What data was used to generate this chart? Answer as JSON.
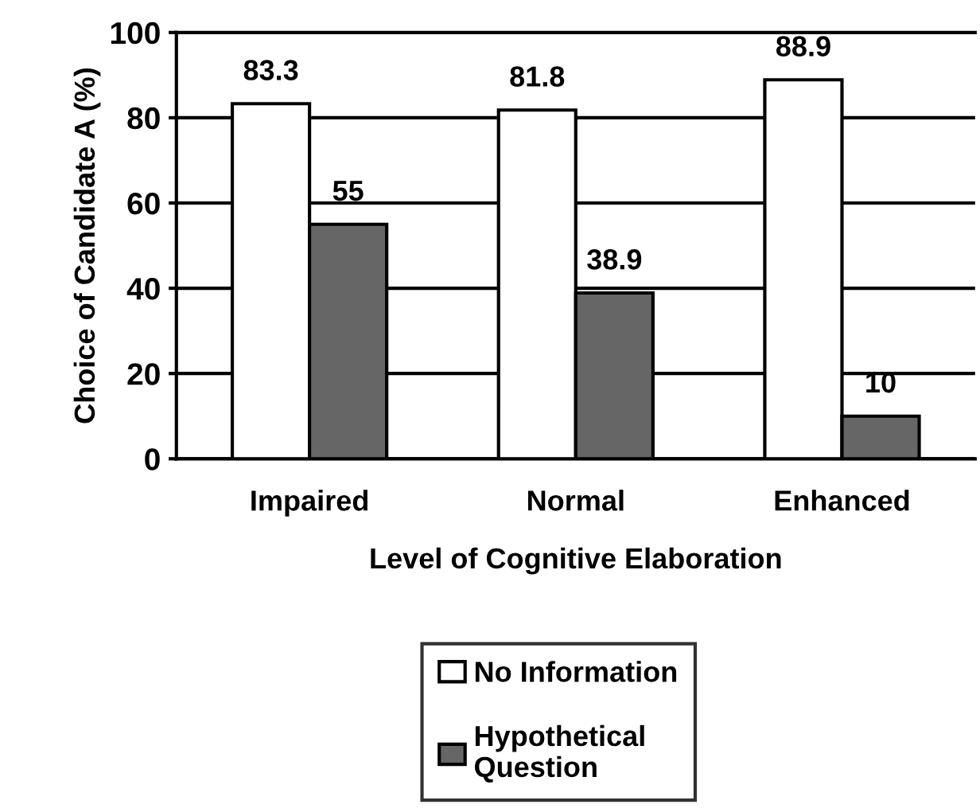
{
  "chart_data": {
    "type": "bar",
    "xlabel": "Level of Cognitive Elaboration",
    "ylabel": "Choice of Candidate A (%)",
    "categories": [
      "Impaired",
      "Normal",
      "Enhanced"
    ],
    "series": [
      {
        "name": "No Information",
        "color": "#ffffff",
        "values": [
          83.3,
          81.8,
          88.9
        ]
      },
      {
        "name": "Hypothetical\nQuestion",
        "color": "#666666",
        "values": [
          55,
          38.9,
          10
        ]
      }
    ],
    "ylim": [
      0,
      100
    ],
    "yticks": [
      0,
      20,
      40,
      60,
      80,
      100
    ],
    "grid": "y",
    "legend": "bottom",
    "data_labels": true
  }
}
